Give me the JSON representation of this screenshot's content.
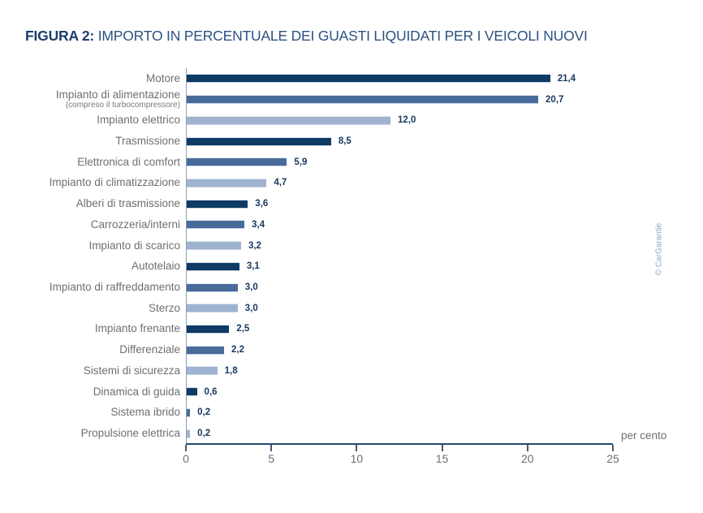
{
  "title": {
    "prefix": "FIGURA 2:",
    "rest": "IMPORTO IN PERCENTUALE DEI GUASTI LIQUIDATI PER I VEICOLI NUOVI"
  },
  "credit": "© CarGarantie",
  "chart_data": {
    "type": "bar",
    "orientation": "horizontal",
    "title": "FIGURA 2: IMPORTO IN PERCENTUALE DEI GUASTI LIQUIDATI PER I VEICOLI NUOVI",
    "xlabel": "per cento",
    "ylabel": "",
    "xlim": [
      0,
      25
    ],
    "x_ticks": [
      0,
      5,
      10,
      15,
      20,
      25
    ],
    "grid": "off",
    "legend": "none",
    "categories": [
      {
        "label": "Motore",
        "sublabel": ""
      },
      {
        "label": "Impianto di alimentazione",
        "sublabel": "(compreso il turbocompressore)"
      },
      {
        "label": "Impianto elettrico",
        "sublabel": ""
      },
      {
        "label": "Trasmissione",
        "sublabel": ""
      },
      {
        "label": "Elettronica di comfort",
        "sublabel": ""
      },
      {
        "label": "Impianto di climatizzazione",
        "sublabel": ""
      },
      {
        "label": "Alberi di trasmissione",
        "sublabel": ""
      },
      {
        "label": "Carrozzeria/interni",
        "sublabel": ""
      },
      {
        "label": "Impianto di scarico",
        "sublabel": ""
      },
      {
        "label": "Autotelaio",
        "sublabel": ""
      },
      {
        "label": "Impianto di raffreddamento",
        "sublabel": ""
      },
      {
        "label": "Sterzo",
        "sublabel": ""
      },
      {
        "label": "Impianto frenante",
        "sublabel": ""
      },
      {
        "label": "Differenziale",
        "sublabel": ""
      },
      {
        "label": "Sistemi di sicurezza",
        "sublabel": ""
      },
      {
        "label": "Dinamica di guida",
        "sublabel": ""
      },
      {
        "label": "Sistema ibrido",
        "sublabel": ""
      },
      {
        "label": "Propulsione elettrica",
        "sublabel": ""
      }
    ],
    "values": [
      21.4,
      20.7,
      12.0,
      8.5,
      5.9,
      4.7,
      3.6,
      3.4,
      3.2,
      3.1,
      3.0,
      3.0,
      2.5,
      2.2,
      1.8,
      0.6,
      0.2,
      0.2
    ],
    "value_labels": [
      "21,4",
      "20,7",
      "12,0",
      "8,5",
      "5,9",
      "4,7",
      "3,6",
      "3,4",
      "3,2",
      "3,1",
      "3,0",
      "3,0",
      "2,5",
      "2,2",
      "1,8",
      "0,6",
      "0,2",
      "0,2"
    ],
    "bar_color_cycle": [
      "#0e3a64",
      "#486b9a",
      "#9eb3d0"
    ],
    "colors": {
      "dark_navy": "#0e3a64",
      "medium_blue": "#486b9a",
      "light_blue": "#9eb3d0",
      "axis_line": "#24496f",
      "label_gray": "#6e6f72",
      "title_navy": "#1c3c6e",
      "value_navy": "#16375f",
      "credit_blue": "#8ea6c2"
    }
  }
}
